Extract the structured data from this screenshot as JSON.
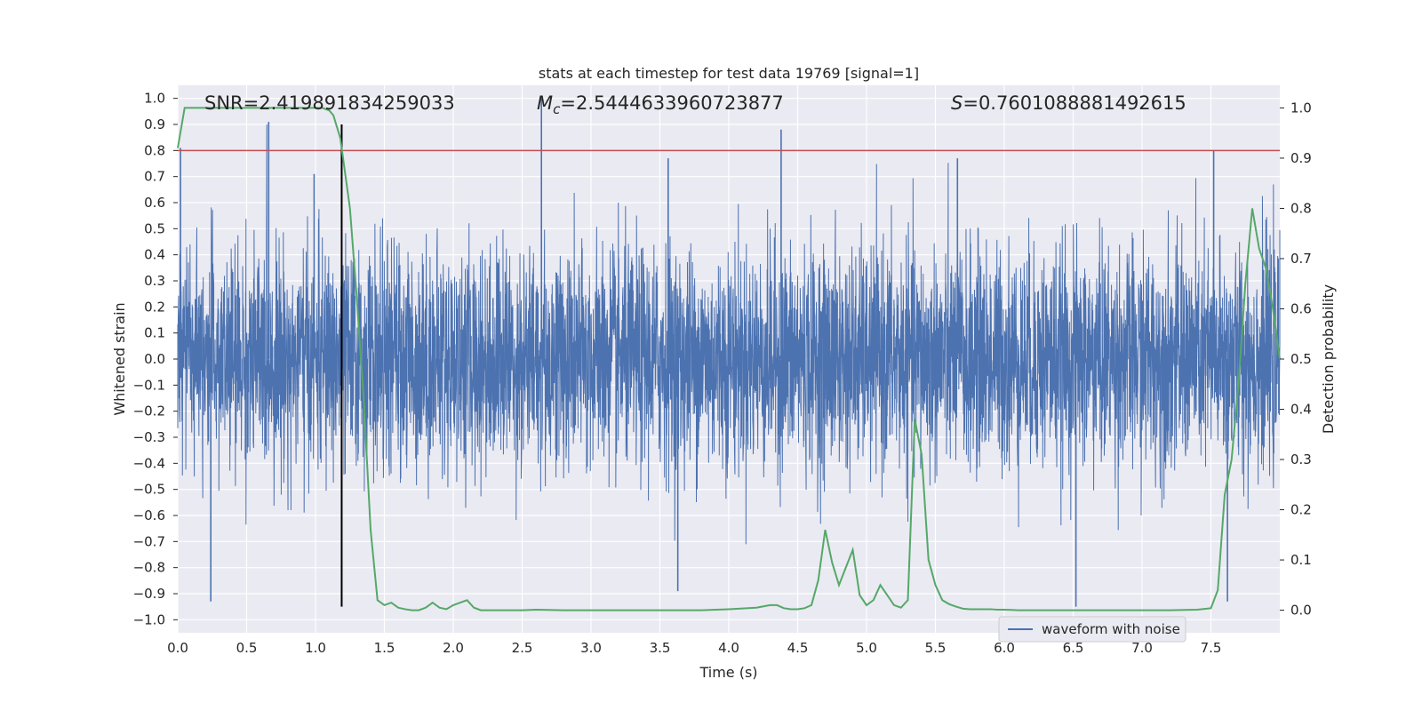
{
  "chart_data": {
    "type": "line",
    "title": "stats at each timestep for test data 19769 [signal=1]",
    "xlabel": "Time (s)",
    "ylabel_left": "Whitened strain",
    "ylabel_right": "Detection probability",
    "xlim": [
      0,
      8
    ],
    "ylim_left": [
      -1.05,
      1.05
    ],
    "ylim_right": [
      -0.045,
      1.045
    ],
    "x_ticks": [
      "0.0",
      "0.5",
      "1.0",
      "1.5",
      "2.0",
      "2.5",
      "3.0",
      "3.5",
      "4.0",
      "4.5",
      "5.0",
      "5.5",
      "6.0",
      "6.5",
      "7.0",
      "7.5"
    ],
    "y_ticks_left": [
      "1.0",
      "0.9",
      "0.8",
      "0.7",
      "0.6",
      "0.5",
      "0.4",
      "0.3",
      "0.2",
      "0.1",
      "0.0",
      "-0.1",
      "-0.2",
      "-0.3",
      "-0.4",
      "-0.5",
      "-0.6",
      "-0.7",
      "-0.8",
      "-0.9",
      "-1.0"
    ],
    "y_ticks_right": [
      "1.0",
      "0.9",
      "0.8",
      "0.7",
      "0.6",
      "0.5",
      "0.4",
      "0.3",
      "0.2",
      "0.1",
      "0.0"
    ],
    "grid": true,
    "legend_placement": "lower-right",
    "annotations": {
      "snr": "SNR=2.419891834259033",
      "mc_symbol": "M",
      "mc_sub": "c",
      "mc_value": "=2.5444633960723877",
      "s_symbol": "S",
      "s_value": "=0.7601088881492615"
    },
    "threshold_line": {
      "value": 0.8,
      "color": "#c44e52"
    },
    "vertical_marker": {
      "x": 1.19,
      "y_range": [
        -0.95,
        0.9
      ],
      "color": "#000000"
    },
    "series": [
      {
        "name": "waveform with noise",
        "color": "#4c72b0",
        "axis": "left",
        "notable_peaks": [
          {
            "x": 0.02,
            "y": 0.81
          },
          {
            "x": 0.66,
            "y": 0.91
          },
          {
            "x": 0.24,
            "y": -0.93
          },
          {
            "x": 2.64,
            "y": 1.0
          },
          {
            "x": 4.38,
            "y": 0.88
          },
          {
            "x": 3.63,
            "y": -0.89
          },
          {
            "x": 6.52,
            "y": -0.95
          },
          {
            "x": 7.62,
            "y": -0.93
          },
          {
            "x": 7.52,
            "y": 0.8
          },
          {
            "x": 0.99,
            "y": 0.71
          },
          {
            "x": 3.56,
            "y": 0.77
          },
          {
            "x": 5.66,
            "y": 0.77
          }
        ]
      },
      {
        "name": "",
        "color": "#55a868",
        "axis": "right",
        "x": [
          0.0,
          0.05,
          0.1,
          0.2,
          0.3,
          0.4,
          0.5,
          0.6,
          0.7,
          0.8,
          0.9,
          1.0,
          1.05,
          1.1,
          1.13,
          1.18,
          1.25,
          1.3,
          1.35,
          1.4,
          1.45,
          1.5,
          1.55,
          1.6,
          1.65,
          1.7,
          1.75,
          1.8,
          1.85,
          1.9,
          1.95,
          2.0,
          2.05,
          2.1,
          2.15,
          2.2,
          2.3,
          2.4,
          2.5,
          2.6,
          2.8,
          3.0,
          3.2,
          3.4,
          3.6,
          3.8,
          4.0,
          4.2,
          4.3,
          4.35,
          4.4,
          4.45,
          4.5,
          4.55,
          4.6,
          4.65,
          4.7,
          4.75,
          4.8,
          4.85,
          4.9,
          4.95,
          5.0,
          5.05,
          5.1,
          5.15,
          5.2,
          5.25,
          5.3,
          5.35,
          5.4,
          5.45,
          5.5,
          5.55,
          5.6,
          5.65,
          5.7,
          5.75,
          5.8,
          5.85,
          5.9,
          5.95,
          6.0,
          6.1,
          6.2,
          6.4,
          6.6,
          6.8,
          7.0,
          7.2,
          7.4,
          7.5,
          7.55,
          7.6,
          7.65,
          7.7,
          7.75,
          7.8,
          7.85,
          7.9,
          7.95,
          8.0
        ],
        "values": [
          0.92,
          1.0,
          1.0,
          1.0,
          1.0,
          1.0,
          1.0,
          1.0,
          1.0,
          1.0,
          1.0,
          1.0,
          1.0,
          0.995,
          0.985,
          0.94,
          0.8,
          0.62,
          0.42,
          0.16,
          0.02,
          0.01,
          0.015,
          0.005,
          0.002,
          0.0,
          0.0,
          0.005,
          0.015,
          0.005,
          0.002,
          0.01,
          0.015,
          0.02,
          0.005,
          0.0,
          0.0,
          0.0,
          0.0,
          0.001,
          0.0,
          0.0,
          0.0,
          0.0,
          0.0,
          0.0,
          0.002,
          0.005,
          0.01,
          0.01,
          0.004,
          0.002,
          0.002,
          0.004,
          0.01,
          0.06,
          0.16,
          0.095,
          0.05,
          0.085,
          0.12,
          0.03,
          0.01,
          0.02,
          0.05,
          0.03,
          0.01,
          0.005,
          0.02,
          0.38,
          0.31,
          0.1,
          0.05,
          0.02,
          0.012,
          0.007,
          0.003,
          0.002,
          0.002,
          0.002,
          0.002,
          0.001,
          0.001,
          0.0,
          0.0,
          0.0,
          0.0,
          0.0,
          0.0,
          0.0,
          0.001,
          0.004,
          0.04,
          0.23,
          0.3,
          0.45,
          0.65,
          0.8,
          0.72,
          0.68,
          0.6,
          0.5
        ]
      }
    ]
  }
}
